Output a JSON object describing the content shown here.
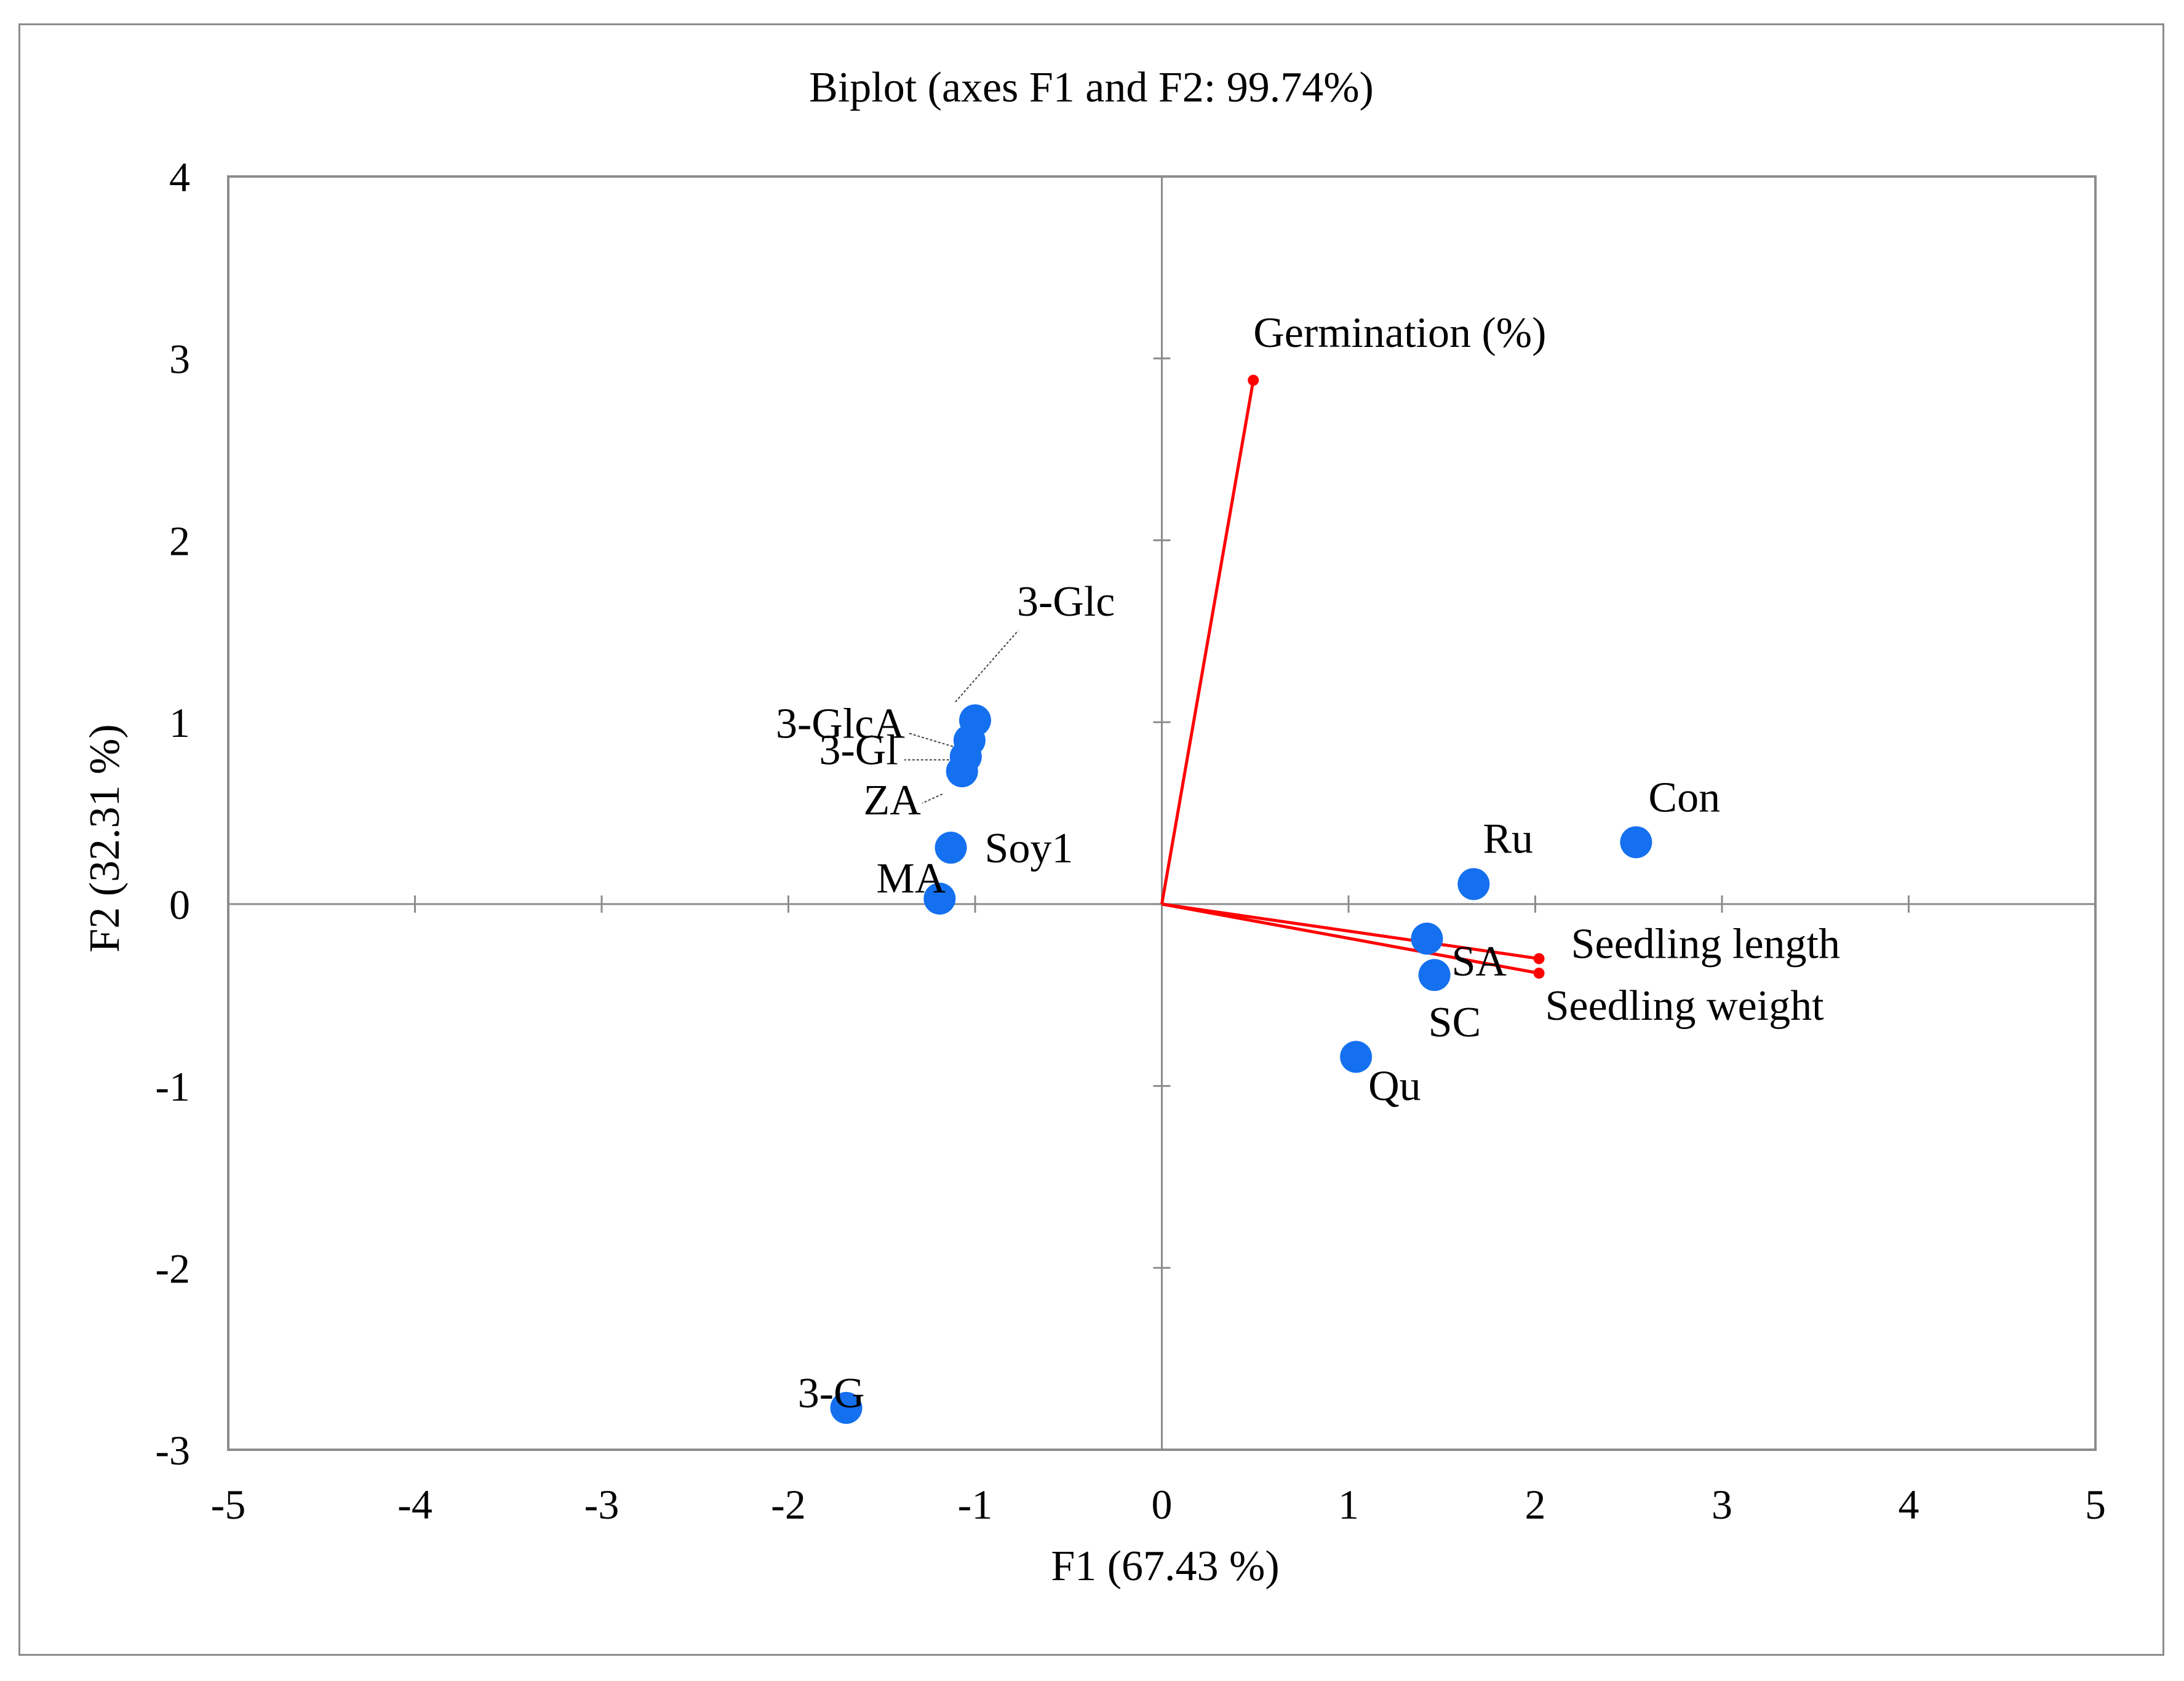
{
  "chart_data": {
    "type": "scatter",
    "title": "Biplot (axes F1 and F2: 99.74%)",
    "xlabel": "F1 (67.43 %)",
    "ylabel": "F2 (32.31 %)",
    "xlim": [
      -5,
      5
    ],
    "ylim": [
      -3,
      4
    ],
    "xticks": [
      "-5",
      "-4",
      "-3",
      "-2",
      "-1",
      "0",
      "1",
      "2",
      "3",
      "4",
      "5"
    ],
    "yticks": [
      "-3",
      "-2",
      "-1",
      "0",
      "1",
      "2",
      "3",
      "4"
    ],
    "xtick_values": [
      -5,
      -4,
      -3,
      -2,
      -1,
      0,
      1,
      2,
      3,
      4,
      5
    ],
    "ytick_values": [
      -3,
      -2,
      -1,
      0,
      1,
      2,
      3,
      4
    ],
    "grid": false,
    "observation_color": "#1570ef",
    "vector_color": "#ff0000",
    "observations": [
      {
        "label": "Con",
        "x": 2.54,
        "y": 0.34
      },
      {
        "label": "Ru",
        "x": 1.67,
        "y": 0.11
      },
      {
        "label": "SA",
        "x": 1.42,
        "y": -0.19
      },
      {
        "label": "SC",
        "x": 1.46,
        "y": -0.39
      },
      {
        "label": "Qu",
        "x": 1.04,
        "y": -0.84
      },
      {
        "label": "3-Glc",
        "x": -1.0,
        "y": 1.01
      },
      {
        "label": "3-GlcA",
        "x": -1.03,
        "y": 0.9
      },
      {
        "label": "3-Gl",
        "x": -1.05,
        "y": 0.81
      },
      {
        "label": "ZA",
        "x": -1.07,
        "y": 0.73
      },
      {
        "label": "Soy1",
        "x": -1.13,
        "y": 0.31
      },
      {
        "label": "MA",
        "x": -1.19,
        "y": 0.03
      },
      {
        "label": "3-G",
        "x": -1.69,
        "y": -2.77
      }
    ],
    "variables": [
      {
        "label": "Germination (%)",
        "x": 0.49,
        "y": 2.88
      },
      {
        "label": "Seedling length",
        "x": 2.02,
        "y": -0.3
      },
      {
        "label": "Seedling weight",
        "x": 2.02,
        "y": -0.38
      }
    ]
  }
}
